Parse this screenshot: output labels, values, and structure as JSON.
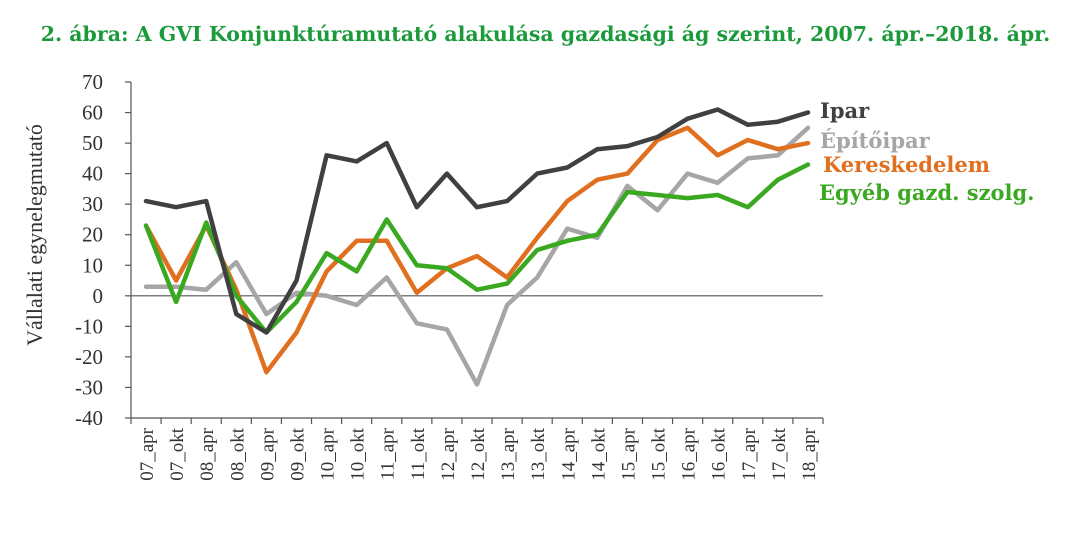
{
  "chart_data": {
    "type": "line",
    "title": "2. ábra: A GVI Konjunktúramutató alakulása gazdasági ág szerint, 2007. ápr.–2018. ápr.",
    "ylabel": "Vállalati egynelegmutató",
    "xlabel": "",
    "ylim": [
      -40,
      70
    ],
    "yticks": [
      70,
      60,
      50,
      40,
      30,
      20,
      10,
      0,
      -10,
      -20,
      -30,
      -40
    ],
    "grid": false,
    "legend_position": "right",
    "categories": [
      "07_apr",
      "07_okt",
      "08_apr",
      "08_okt",
      "09_apr",
      "09_okt",
      "10_apr",
      "10_okt",
      "11_apr",
      "11_okt",
      "12_apr",
      "12_okt",
      "13_apr",
      "13_okt",
      "14_apr",
      "14_okt",
      "15_apr",
      "15_okt",
      "16_apr",
      "16_okt",
      "17_apr",
      "17_okt",
      "18_apr"
    ],
    "series": [
      {
        "name": "Építőipar",
        "color": "#a6a6a6",
        "values": [
          3,
          3,
          2,
          11,
          -6,
          1,
          0,
          -3,
          6,
          -9,
          -11,
          -29,
          -3,
          6,
          22,
          19,
          36,
          28,
          40,
          37,
          45,
          46,
          55
        ]
      },
      {
        "name": "Kereskedelem",
        "color": "#e07020",
        "values": [
          23,
          5,
          23,
          2,
          -25,
          -12,
          8,
          18,
          18,
          1,
          9,
          13,
          6,
          19,
          31,
          38,
          40,
          51,
          55,
          46,
          51,
          48,
          50
        ]
      },
      {
        "name": "Egyéb gazd. szolg.",
        "color": "#3aa820",
        "values": [
          23,
          -2,
          24,
          0,
          -12,
          -2,
          14,
          8,
          25,
          10,
          9,
          2,
          4,
          15,
          18,
          20,
          34,
          33,
          32,
          33,
          29,
          38,
          43
        ]
      },
      {
        "name": "Ipar",
        "color": "#404040",
        "values": [
          31,
          29,
          31,
          -6,
          -12,
          5,
          46,
          44,
          50,
          29,
          40,
          29,
          31,
          40,
          42,
          48,
          49,
          52,
          58,
          61,
          56,
          57,
          60
        ]
      }
    ]
  }
}
